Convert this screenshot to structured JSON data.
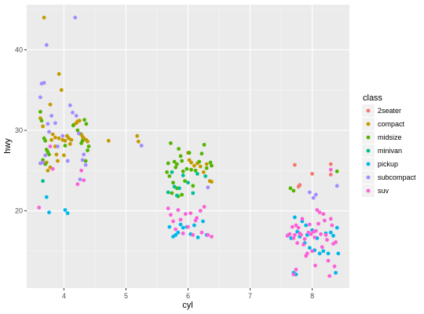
{
  "chart_data": {
    "type": "scatter",
    "xlabel": "cyl",
    "ylabel": "hwy",
    "xlim": [
      3.4,
      8.6
    ],
    "ylim": [
      10.4,
      45.6
    ],
    "x_ticks": [
      4,
      5,
      6,
      7,
      8
    ],
    "y_ticks": [
      20,
      30,
      40
    ],
    "grid": true,
    "legend": {
      "title": "class",
      "placement": "right"
    },
    "series": [
      {
        "name": "2seater",
        "color": "#F8766D",
        "points": [
          [
            7.72,
            25.7
          ],
          [
            7.78,
            23.0
          ],
          [
            7.8,
            23.2
          ],
          [
            8.0,
            24.6
          ],
          [
            8.3,
            25.8
          ],
          [
            8.3,
            24.5
          ]
        ]
      },
      {
        "name": "compact",
        "color": "#C49A00",
        "points": [
          [
            3.68,
            44.0
          ],
          [
            3.92,
            37.0
          ],
          [
            3.96,
            35.0
          ],
          [
            3.78,
            33.2
          ],
          [
            3.62,
            31.5
          ],
          [
            3.66,
            30.5
          ],
          [
            3.82,
            29.5
          ],
          [
            3.86,
            29.1
          ],
          [
            3.92,
            29.0
          ],
          [
            3.98,
            28.8
          ],
          [
            4.02,
            28.7
          ],
          [
            4.08,
            29.0
          ],
          [
            4.12,
            28.8
          ],
          [
            4.16,
            30.7
          ],
          [
            4.2,
            30.9
          ],
          [
            4.22,
            31.1
          ],
          [
            4.25,
            31.2
          ],
          [
            4.28,
            29.5
          ],
          [
            4.32,
            29.0
          ],
          [
            4.36,
            28.8
          ],
          [
            4.38,
            28.6
          ],
          [
            3.8,
            28.8
          ],
          [
            3.86,
            28.0
          ],
          [
            3.88,
            27.0
          ],
          [
            3.72,
            26.0
          ],
          [
            3.74,
            25.0
          ],
          [
            3.78,
            25.4
          ],
          [
            3.9,
            26.2
          ],
          [
            4.0,
            26.9
          ],
          [
            4.05,
            29.3
          ],
          [
            4.1,
            28.3
          ],
          [
            4.3,
            29.2
          ],
          [
            4.72,
            28.7
          ],
          [
            5.18,
            29.3
          ],
          [
            5.2,
            28.6
          ],
          [
            6.0,
            27.2
          ],
          [
            6.02,
            26.3
          ],
          [
            6.05,
            26.0
          ],
          [
            6.1,
            25.6
          ],
          [
            6.15,
            25.9
          ],
          [
            6.2,
            25.5
          ],
          [
            6.25,
            24.8
          ],
          [
            6.3,
            25.8
          ],
          [
            6.35,
            23.7
          ],
          [
            6.38,
            23.6
          ]
        ]
      },
      {
        "name": "midsize",
        "color": "#53B400",
        "points": [
          [
            3.62,
            32.3
          ],
          [
            3.64,
            31.2
          ],
          [
            3.68,
            29.0
          ],
          [
            3.7,
            28.7
          ],
          [
            3.72,
            27.6
          ],
          [
            3.74,
            27.3
          ],
          [
            3.76,
            27.0
          ],
          [
            3.66,
            26.3
          ],
          [
            3.7,
            25.8
          ],
          [
            4.02,
            28.1
          ],
          [
            4.15,
            30.6
          ],
          [
            4.22,
            30.0
          ],
          [
            4.25,
            29.6
          ],
          [
            4.28,
            28.4
          ],
          [
            4.3,
            28.7
          ],
          [
            4.33,
            31.3
          ],
          [
            4.36,
            30.8
          ],
          [
            4.38,
            27.5
          ],
          [
            4.4,
            28.0
          ],
          [
            4.35,
            26.2
          ],
          [
            5.72,
            28.4
          ],
          [
            5.78,
            26.1
          ],
          [
            5.8,
            25.4
          ],
          [
            5.82,
            25.8
          ],
          [
            5.85,
            27.7
          ],
          [
            5.88,
            26.8
          ],
          [
            5.9,
            26.2
          ],
          [
            5.92,
            24.9
          ],
          [
            5.95,
            23.7
          ],
          [
            5.98,
            25.2
          ],
          [
            6.02,
            27.2
          ],
          [
            6.05,
            25.1
          ],
          [
            6.08,
            23.1
          ],
          [
            6.12,
            25.0
          ],
          [
            6.18,
            26.1
          ],
          [
            6.22,
            27.1
          ],
          [
            6.26,
            28.2
          ],
          [
            6.3,
            25.3
          ],
          [
            6.36,
            26.0
          ],
          [
            6.38,
            25.6
          ],
          [
            5.68,
            25.9
          ],
          [
            5.66,
            24.8
          ],
          [
            5.7,
            24.3
          ],
          [
            5.76,
            23.5
          ],
          [
            5.74,
            22.2
          ],
          [
            5.82,
            22.8
          ],
          [
            5.84,
            21.8
          ],
          [
            5.9,
            22.0
          ],
          [
            7.65,
            22.8
          ],
          [
            7.7,
            22.5
          ],
          [
            8.4,
            24.9
          ]
        ]
      },
      {
        "name": "minivan",
        "color": "#00C094",
        "points": [
          [
            3.66,
            23.7
          ],
          [
            5.68,
            22.3
          ],
          [
            5.74,
            24.8
          ],
          [
            5.78,
            23.0
          ],
          [
            5.82,
            21.9
          ],
          [
            5.86,
            22.8
          ],
          [
            5.92,
            24.4
          ],
          [
            6.0,
            23.5
          ],
          [
            6.08,
            22.2
          ],
          [
            6.15,
            24.6
          ],
          [
            6.28,
            24.3
          ]
        ]
      },
      {
        "name": "pickup",
        "color": "#00B6EB",
        "points": [
          [
            3.72,
            21.7
          ],
          [
            3.76,
            19.8
          ],
          [
            4.02,
            20.1
          ],
          [
            4.06,
            19.7
          ],
          [
            5.7,
            18.0
          ],
          [
            5.76,
            16.8
          ],
          [
            5.8,
            17.0
          ],
          [
            5.84,
            17.3
          ],
          [
            5.88,
            18.3
          ],
          [
            5.92,
            17.9
          ],
          [
            5.98,
            18.0
          ],
          [
            6.04,
            17.1
          ],
          [
            6.1,
            18.2
          ],
          [
            6.16,
            16.7
          ],
          [
            6.24,
            18.7
          ],
          [
            6.3,
            17.0
          ],
          [
            7.62,
            17.0
          ],
          [
            7.66,
            16.6
          ],
          [
            7.7,
            12.3
          ],
          [
            7.72,
            19.2
          ],
          [
            7.76,
            17.4
          ],
          [
            7.8,
            16.8
          ],
          [
            7.84,
            18.7
          ],
          [
            7.88,
            16.0
          ],
          [
            7.92,
            17.0
          ],
          [
            7.96,
            15.4
          ],
          [
            8.0,
            17.6
          ],
          [
            8.04,
            15.1
          ],
          [
            8.08,
            16.6
          ],
          [
            8.12,
            14.7
          ],
          [
            8.18,
            15.0
          ],
          [
            8.22,
            17.2
          ],
          [
            8.26,
            14.7
          ],
          [
            8.3,
            17.3
          ],
          [
            8.34,
            16.9
          ],
          [
            8.38,
            12.3
          ],
          [
            8.4,
            17.9
          ],
          [
            8.42,
            14.7
          ],
          [
            7.74,
            12.1
          ],
          [
            7.9,
            18.2
          ]
        ]
      },
      {
        "name": "subcompact",
        "color": "#A58AFF",
        "points": [
          [
            3.72,
            40.6
          ],
          [
            4.18,
            44.0
          ],
          [
            3.62,
            34.1
          ],
          [
            3.64,
            35.8
          ],
          [
            3.68,
            35.9
          ],
          [
            3.74,
            30.8
          ],
          [
            3.76,
            29.8
          ],
          [
            3.8,
            31.8
          ],
          [
            3.86,
            30.9
          ],
          [
            3.9,
            28.0
          ],
          [
            3.98,
            29.3
          ],
          [
            4.06,
            26.2
          ],
          [
            4.1,
            33.1
          ],
          [
            4.14,
            32.2
          ],
          [
            4.2,
            31.8
          ],
          [
            4.24,
            29.6
          ],
          [
            4.26,
            23.9
          ],
          [
            4.3,
            26.3
          ],
          [
            4.32,
            27.0
          ],
          [
            4.35,
            25.7
          ],
          [
            3.66,
            26.0
          ],
          [
            3.7,
            26.9
          ],
          [
            3.62,
            25.9
          ],
          [
            5.25,
            28.1
          ],
          [
            6.32,
            22.9
          ],
          [
            8.4,
            23.1
          ],
          [
            7.96,
            22.3
          ],
          [
            8.02,
            21.6
          ],
          [
            8.06,
            22.0
          ]
        ]
      },
      {
        "name": "suv",
        "color": "#FB61D7",
        "points": [
          [
            3.6,
            20.4
          ],
          [
            3.78,
            28.0
          ],
          [
            3.82,
            25.2
          ],
          [
            4.22,
            23.3
          ],
          [
            4.28,
            25.0
          ],
          [
            4.32,
            23.8
          ],
          [
            5.68,
            20.3
          ],
          [
            5.72,
            19.5
          ],
          [
            5.76,
            18.7
          ],
          [
            5.8,
            17.7
          ],
          [
            5.84,
            20.1
          ],
          [
            5.88,
            18.9
          ],
          [
            5.92,
            17.2
          ],
          [
            5.96,
            19.6
          ],
          [
            6.0,
            18.0
          ],
          [
            6.04,
            19.7
          ],
          [
            6.08,
            17.0
          ],
          [
            6.12,
            18.8
          ],
          [
            6.14,
            19.1
          ],
          [
            6.2,
            20.0
          ],
          [
            6.22,
            17.3
          ],
          [
            6.26,
            20.5
          ],
          [
            6.32,
            17.0
          ],
          [
            6.38,
            16.8
          ],
          [
            7.6,
            16.9
          ],
          [
            7.64,
            17.1
          ],
          [
            7.68,
            18.0
          ],
          [
            7.7,
            16.6
          ],
          [
            7.72,
            17.0
          ],
          [
            7.74,
            18.2
          ],
          [
            7.76,
            16.0
          ],
          [
            7.78,
            17.9
          ],
          [
            7.8,
            17.2
          ],
          [
            7.82,
            17.0
          ],
          [
            7.84,
            19.0
          ],
          [
            7.86,
            15.8
          ],
          [
            7.88,
            16.5
          ],
          [
            7.9,
            14.4
          ],
          [
            7.92,
            14.7
          ],
          [
            7.94,
            17.3
          ],
          [
            7.96,
            18.3
          ],
          [
            7.98,
            17.1
          ],
          [
            8.0,
            15.0
          ],
          [
            8.02,
            17.4
          ],
          [
            8.04,
            16.7
          ],
          [
            8.06,
            17.5
          ],
          [
            8.08,
            20.1
          ],
          [
            8.1,
            18.4
          ],
          [
            8.12,
            19.8
          ],
          [
            8.14,
            17.1
          ],
          [
            8.16,
            15.5
          ],
          [
            8.18,
            19.6
          ],
          [
            8.2,
            18.8
          ],
          [
            8.22,
            17.0
          ],
          [
            8.24,
            16.4
          ],
          [
            8.26,
            13.8
          ],
          [
            8.28,
            11.9
          ],
          [
            8.3,
            19.0
          ],
          [
            8.32,
            18.2
          ],
          [
            8.34,
            15.9
          ],
          [
            8.36,
            13.1
          ],
          [
            8.38,
            16.1
          ],
          [
            8.3,
            25.1
          ],
          [
            8.05,
            13.2
          ],
          [
            7.74,
            12.7
          ],
          [
            7.7,
            12.1
          ]
        ]
      }
    ]
  }
}
